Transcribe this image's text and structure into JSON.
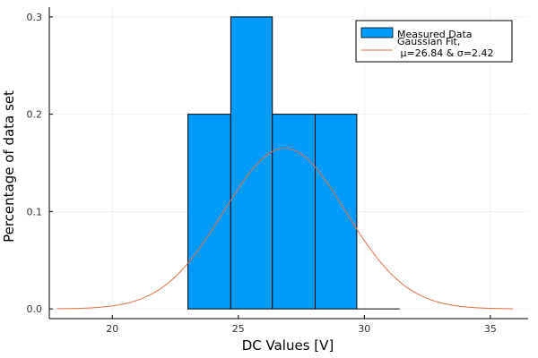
{
  "chart_data": {
    "type": "bar",
    "title": "",
    "xlabel": "DC Values [V]",
    "ylabel": "Percentage of data set",
    "xlim": [
      17.5,
      36.5
    ],
    "ylim": [
      -0.01,
      0.31
    ],
    "x_ticks": [
      20,
      25,
      30,
      35
    ],
    "y_ticks": [
      0.0,
      0.1,
      0.2,
      0.3
    ],
    "grid": true,
    "legend_position": "top-right",
    "series": [
      {
        "name": "Measured Data",
        "type": "histogram",
        "color": "#009af9",
        "bins": [
          {
            "start": 23.0,
            "end": 24.7,
            "value": 0.2
          },
          {
            "start": 24.7,
            "end": 26.35,
            "value": 0.3
          },
          {
            "start": 26.35,
            "end": 28.05,
            "value": 0.2
          },
          {
            "start": 28.05,
            "end": 29.7,
            "value": 0.2
          },
          {
            "start": 29.7,
            "end": 31.4,
            "value": 0.0
          }
        ]
      },
      {
        "name": "Gaussian Fit,\n μ=26.84 & σ=2.42",
        "type": "line",
        "color": "#e26f46",
        "mu": 26.84,
        "sigma": 2.42,
        "peak": 0.165,
        "x_range": [
          17.8,
          35.9
        ]
      }
    ]
  }
}
